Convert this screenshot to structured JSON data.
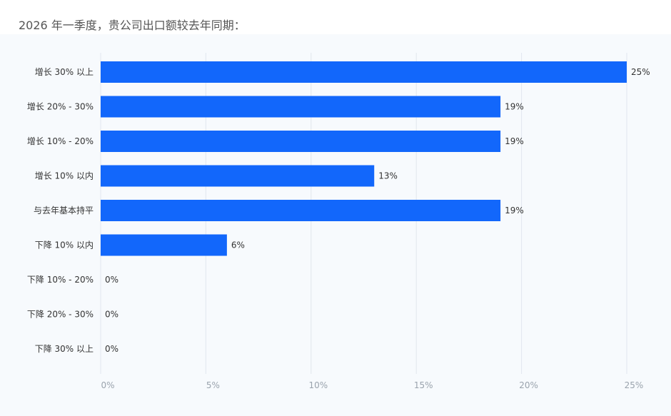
{
  "page": {
    "title": "2026 年一季度，贵公司出口额较去年同期："
  },
  "colors": {
    "bar": "#1267fb",
    "grid": "#e1e7ee",
    "axis_label": "#9aa3ad",
    "category_label": "#333333"
  },
  "chart_data": {
    "type": "bar",
    "orientation": "horizontal",
    "title": "2026 年一季度，贵公司出口额较去年同期：",
    "categories": [
      "增长 30% 以上",
      "增长 20% - 30%",
      "增长 10% - 20%",
      "增长 10% 以内",
      "与去年基本持平",
      "下降 10% 以内",
      "下降 10% - 20%",
      "下降 20% - 30%",
      "下降 30% 以上"
    ],
    "values": [
      25,
      19,
      19,
      13,
      19,
      6,
      0,
      0,
      0
    ],
    "value_labels": [
      "25%",
      "19%",
      "19%",
      "13%",
      "19%",
      "6%",
      "0%",
      "0%",
      "0%"
    ],
    "xlim": [
      0,
      25
    ],
    "x_ticks": [
      0,
      5,
      10,
      15,
      20,
      25
    ],
    "x_tick_labels": [
      "0%",
      "5%",
      "10%",
      "15%",
      "20%",
      "25%"
    ],
    "grid": true,
    "legend": "none"
  }
}
